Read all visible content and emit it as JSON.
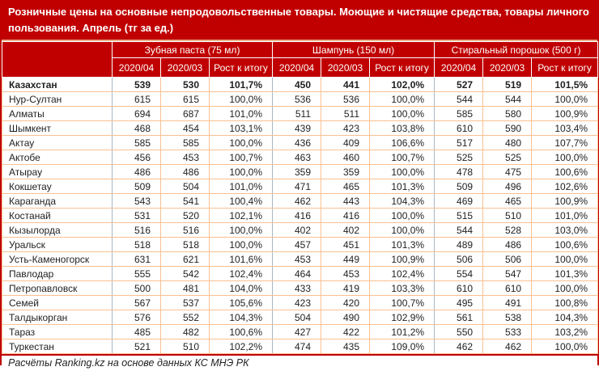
{
  "title": "Розничные цены на основные непродовольственные товары. Моющие и чистящие средства, товары личного пользования. Апрель (тг за ед.)",
  "footer": "Расчёты Ranking.kz на основе данных КС МНЭ РК",
  "colors": {
    "header_background": "#C00000",
    "outer_border": "#C00000",
    "grid_border": "#FAC090",
    "group_divider": "#A9B6C4",
    "header_text": "#FFFFFF",
    "body_text": "#1F1F1F"
  },
  "chart_data": {
    "type": "table",
    "title": "Розничные цены на основные непродовольственные товары. Моющие и чистящие средства, товары личного пользования. Апрель (тг за ед.)",
    "column_groups": [
      {
        "label": "Зубная паста (75 мл)"
      },
      {
        "label": "Шампунь (150 мл)"
      },
      {
        "label": "Стиральный порошок (500 г)"
      }
    ],
    "subcolumns": [
      "2020/04",
      "2020/03",
      "Рост к итогу"
    ],
    "rows": [
      {
        "region": "Казахстан",
        "bold": true,
        "values": [
          "539",
          "530",
          "101,7%",
          "450",
          "441",
          "102,0%",
          "527",
          "519",
          "101,5%"
        ]
      },
      {
        "region": "Нур-Султан",
        "bold": false,
        "values": [
          "615",
          "615",
          "100,0%",
          "536",
          "536",
          "100,0%",
          "544",
          "544",
          "100,0%"
        ]
      },
      {
        "region": "Алматы",
        "bold": false,
        "values": [
          "694",
          "687",
          "101,0%",
          "511",
          "511",
          "100,0%",
          "585",
          "580",
          "100,9%"
        ]
      },
      {
        "region": "Шымкент",
        "bold": false,
        "values": [
          "468",
          "454",
          "103,1%",
          "439",
          "423",
          "103,8%",
          "610",
          "590",
          "103,4%"
        ]
      },
      {
        "region": "Актау",
        "bold": false,
        "values": [
          "585",
          "585",
          "100,0%",
          "436",
          "409",
          "106,6%",
          "517",
          "480",
          "107,7%"
        ]
      },
      {
        "region": "Актобе",
        "bold": false,
        "values": [
          "456",
          "453",
          "100,7%",
          "463",
          "460",
          "100,7%",
          "525",
          "525",
          "100,0%"
        ]
      },
      {
        "region": "Атырау",
        "bold": false,
        "values": [
          "486",
          "486",
          "100,0%",
          "359",
          "359",
          "100,0%",
          "478",
          "475",
          "100,6%"
        ]
      },
      {
        "region": "Кокшетау",
        "bold": false,
        "values": [
          "509",
          "504",
          "101,0%",
          "471",
          "465",
          "101,3%",
          "509",
          "496",
          "102,6%"
        ]
      },
      {
        "region": "Караганда",
        "bold": false,
        "values": [
          "543",
          "541",
          "100,4%",
          "462",
          "443",
          "104,3%",
          "469",
          "465",
          "100,9%"
        ]
      },
      {
        "region": "Костанай",
        "bold": false,
        "values": [
          "531",
          "520",
          "102,1%",
          "416",
          "416",
          "100,0%",
          "515",
          "510",
          "101,0%"
        ]
      },
      {
        "region": "Кызылорда",
        "bold": false,
        "values": [
          "516",
          "516",
          "100,0%",
          "402",
          "402",
          "100,0%",
          "544",
          "528",
          "103,0%"
        ]
      },
      {
        "region": "Уральск",
        "bold": false,
        "values": [
          "518",
          "518",
          "100,0%",
          "457",
          "451",
          "101,3%",
          "489",
          "486",
          "100,6%"
        ]
      },
      {
        "region": "Усть-Каменогорск",
        "bold": false,
        "values": [
          "631",
          "621",
          "101,6%",
          "453",
          "449",
          "100,9%",
          "506",
          "506",
          "100,0%"
        ]
      },
      {
        "region": "Павлодар",
        "bold": false,
        "values": [
          "555",
          "542",
          "102,4%",
          "464",
          "453",
          "102,4%",
          "554",
          "547",
          "101,3%"
        ]
      },
      {
        "region": "Петропавловск",
        "bold": false,
        "values": [
          "500",
          "481",
          "104,0%",
          "433",
          "419",
          "103,3%",
          "610",
          "610",
          "100,0%"
        ]
      },
      {
        "region": "Семей",
        "bold": false,
        "values": [
          "567",
          "537",
          "105,6%",
          "423",
          "420",
          "100,7%",
          "495",
          "491",
          "100,8%"
        ]
      },
      {
        "region": "Талдыкорган",
        "bold": false,
        "values": [
          "576",
          "552",
          "104,3%",
          "504",
          "490",
          "102,9%",
          "561",
          "538",
          "104,3%"
        ]
      },
      {
        "region": "Тараз",
        "bold": false,
        "values": [
          "485",
          "482",
          "100,6%",
          "427",
          "422",
          "101,2%",
          "550",
          "533",
          "103,2%"
        ]
      },
      {
        "region": "Туркестан",
        "bold": false,
        "values": [
          "521",
          "510",
          "102,2%",
          "474",
          "435",
          "109,0%",
          "462",
          "462",
          "100,0%"
        ]
      }
    ]
  }
}
